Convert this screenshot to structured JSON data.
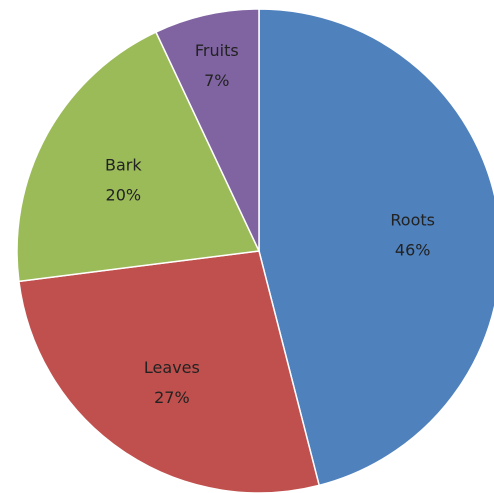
{
  "chart_data": {
    "type": "pie",
    "title": "",
    "legend": "none",
    "start_angle_deg": 0,
    "direction": "clockwise",
    "slices": [
      {
        "label": "Roots",
        "value": 46,
        "value_label": "46%",
        "color": "#4F81BD"
      },
      {
        "label": "Leaves",
        "value": 27,
        "value_label": "27%",
        "color": "#C0504D"
      },
      {
        "label": "Bark",
        "value": 20,
        "value_label": "20%",
        "color": "#9BBB59"
      },
      {
        "label": "Fruits",
        "value": 7,
        "value_label": "7%",
        "color": "#8064A2"
      }
    ]
  }
}
